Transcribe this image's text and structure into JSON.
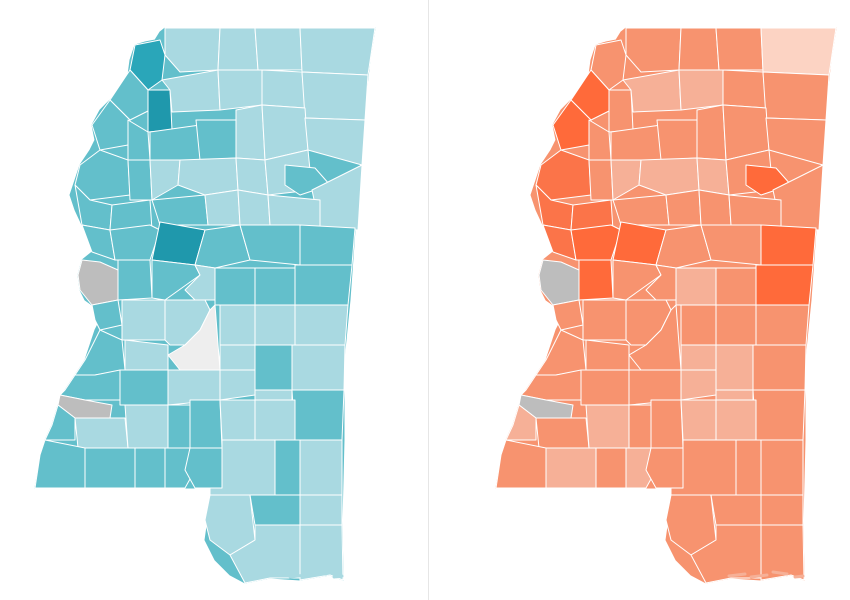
{
  "maps": [
    {
      "id": "left",
      "palette": {
        "light": "#a9d9e1",
        "mid": "#63bfcb",
        "dark": "#2aa6b9",
        "darkest": "#1f98ac",
        "no_data": "#bdbdbd",
        "pale": "#eeeeee"
      }
    },
    {
      "id": "right",
      "palette": {
        "light": "#f6b097",
        "mid": "#f7936f",
        "dark": "#fb7449",
        "darkest": "#ff6a3a",
        "no_data": "#bdbdbd",
        "pale": "#fcd3c3"
      }
    }
  ]
}
